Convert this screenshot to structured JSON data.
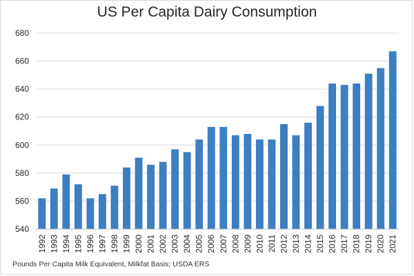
{
  "chart_data": {
    "type": "bar",
    "title": "US Per Capita Dairy Consumption",
    "xlabel": "",
    "ylabel": "",
    "source": "Pounds Per Capita Milk Equivalent, Milkfat Basis; USDA ERS",
    "categories": [
      "1992",
      "1993",
      "1994",
      "1995",
      "1996",
      "1997",
      "1998",
      "1999",
      "2000",
      "2001",
      "2002",
      "2003",
      "2004",
      "2005",
      "2006",
      "2007",
      "2008",
      "2009",
      "2010",
      "2011",
      "2012",
      "2013",
      "2014",
      "2015",
      "2016",
      "2017",
      "2018",
      "2019",
      "2020",
      "2021"
    ],
    "values": [
      562,
      569,
      579,
      572,
      562,
      565,
      571,
      584,
      591,
      586,
      588,
      597,
      595,
      604,
      613,
      613,
      607,
      608,
      604,
      604,
      615,
      607,
      616,
      628,
      644,
      643,
      644,
      651,
      655,
      667
    ],
    "ylim": [
      540,
      680
    ],
    "yticks": [
      540,
      560,
      580,
      600,
      620,
      640,
      660,
      680
    ],
    "grid": true,
    "colors": {
      "bar": "#3d7fc1",
      "grid": "#d9d9d9",
      "axis": "#bfbfbf"
    }
  }
}
